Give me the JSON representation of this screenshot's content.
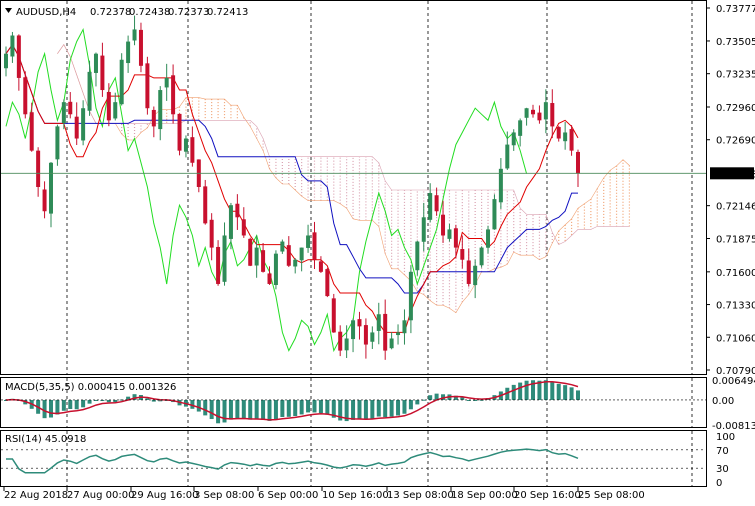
{
  "header": {
    "symbol": "AUDUSD,H4",
    "open": "0.72378",
    "high": "0.72438",
    "low": "0.72373",
    "close": "0.72413"
  },
  "colors": {
    "bull_candle": "#2e8b57",
    "bear_candle": "#c8102e",
    "tenkan": "#e00000",
    "kijun": "#1010c0",
    "chikou": "#22dd22",
    "cloud_a": "#f0a070",
    "cloud_b": "#d9a0b0",
    "macd_hist": "#2e8b7a",
    "macd_signal": "#c8102e",
    "rsi_line": "#2e8b7a",
    "grid": "#000000",
    "last_price_line": "#4a8a5a"
  },
  "chart_data": [
    {
      "type": "candlestick",
      "title": "AUDUSD,H4",
      "ylim": [
        0.7079,
        0.73777
      ],
      "yticks": [
        "0.73777",
        "0.73505",
        "0.73235",
        "0.72960",
        "0.72690",
        "0.72413",
        "0.72146",
        "0.71875",
        "0.71600",
        "0.71330",
        "0.71060",
        "0.70790"
      ],
      "last_price": "0.72413",
      "xticks": [
        "22 Aug 2018",
        "27 Aug 00:00",
        "29 Aug 16:00",
        "3 Sep 08:00",
        "6 Sep 00:00",
        "10 Sep 16:00",
        "13 Sep 08:00",
        "18 Sep 00:00",
        "20 Sep 16:00",
        "25 Sep 08:00"
      ],
      "grid": "vertical-dashed",
      "indicators": [
        "Ichimoku Tenkan-sen",
        "Ichimoku Kijun-sen",
        "Chikou Span",
        "Ichimoku Cloud"
      ],
      "close_path": [
        0.734,
        0.7355,
        0.732,
        0.729,
        0.726,
        0.723,
        0.721,
        0.725,
        0.728,
        0.73,
        0.729,
        0.727,
        0.7295,
        0.7325,
        0.734,
        0.731,
        0.7285,
        0.73,
        0.7335,
        0.735,
        0.736,
        0.733,
        0.7295,
        0.728,
        0.731,
        0.732,
        0.729,
        0.726,
        0.727,
        0.725,
        0.723,
        0.72,
        0.718,
        0.715,
        0.719,
        0.7215,
        0.7205,
        0.719,
        0.7165,
        0.718,
        0.716,
        0.715,
        0.7175,
        0.7185,
        0.7165,
        0.717,
        0.718,
        0.719,
        0.717,
        0.716,
        0.714,
        0.711,
        0.7095,
        0.7105,
        0.712,
        0.7115,
        0.71,
        0.711,
        0.7125,
        0.7095,
        0.7105,
        0.711,
        0.712,
        0.716,
        0.7185,
        0.7205,
        0.7225,
        0.721,
        0.719,
        0.7195,
        0.718,
        0.717,
        0.715,
        0.7165,
        0.718,
        0.7195,
        0.722,
        0.7245,
        0.7265,
        0.7275,
        0.7285,
        0.7295,
        0.729,
        0.7285,
        0.73,
        0.728,
        0.727,
        0.7275,
        0.726,
        0.7241
      ]
    },
    {
      "type": "histogram+line",
      "title": "MACD(5,35,5) 0.000415 0.001326",
      "name": "MACD(5,35,5)",
      "values_shown": [
        "0.000415",
        "0.001326"
      ],
      "yticks": [
        "0.006494",
        "0.00",
        "-0.008131"
      ]
    },
    {
      "type": "line",
      "title": "RSI(14) 45.0918",
      "name": "RSI(14)",
      "value_shown": "45.0918",
      "ylim": [
        0,
        100
      ],
      "yticks": [
        "100",
        "70",
        "30",
        "0"
      ],
      "levels": [
        70,
        30
      ]
    }
  ]
}
